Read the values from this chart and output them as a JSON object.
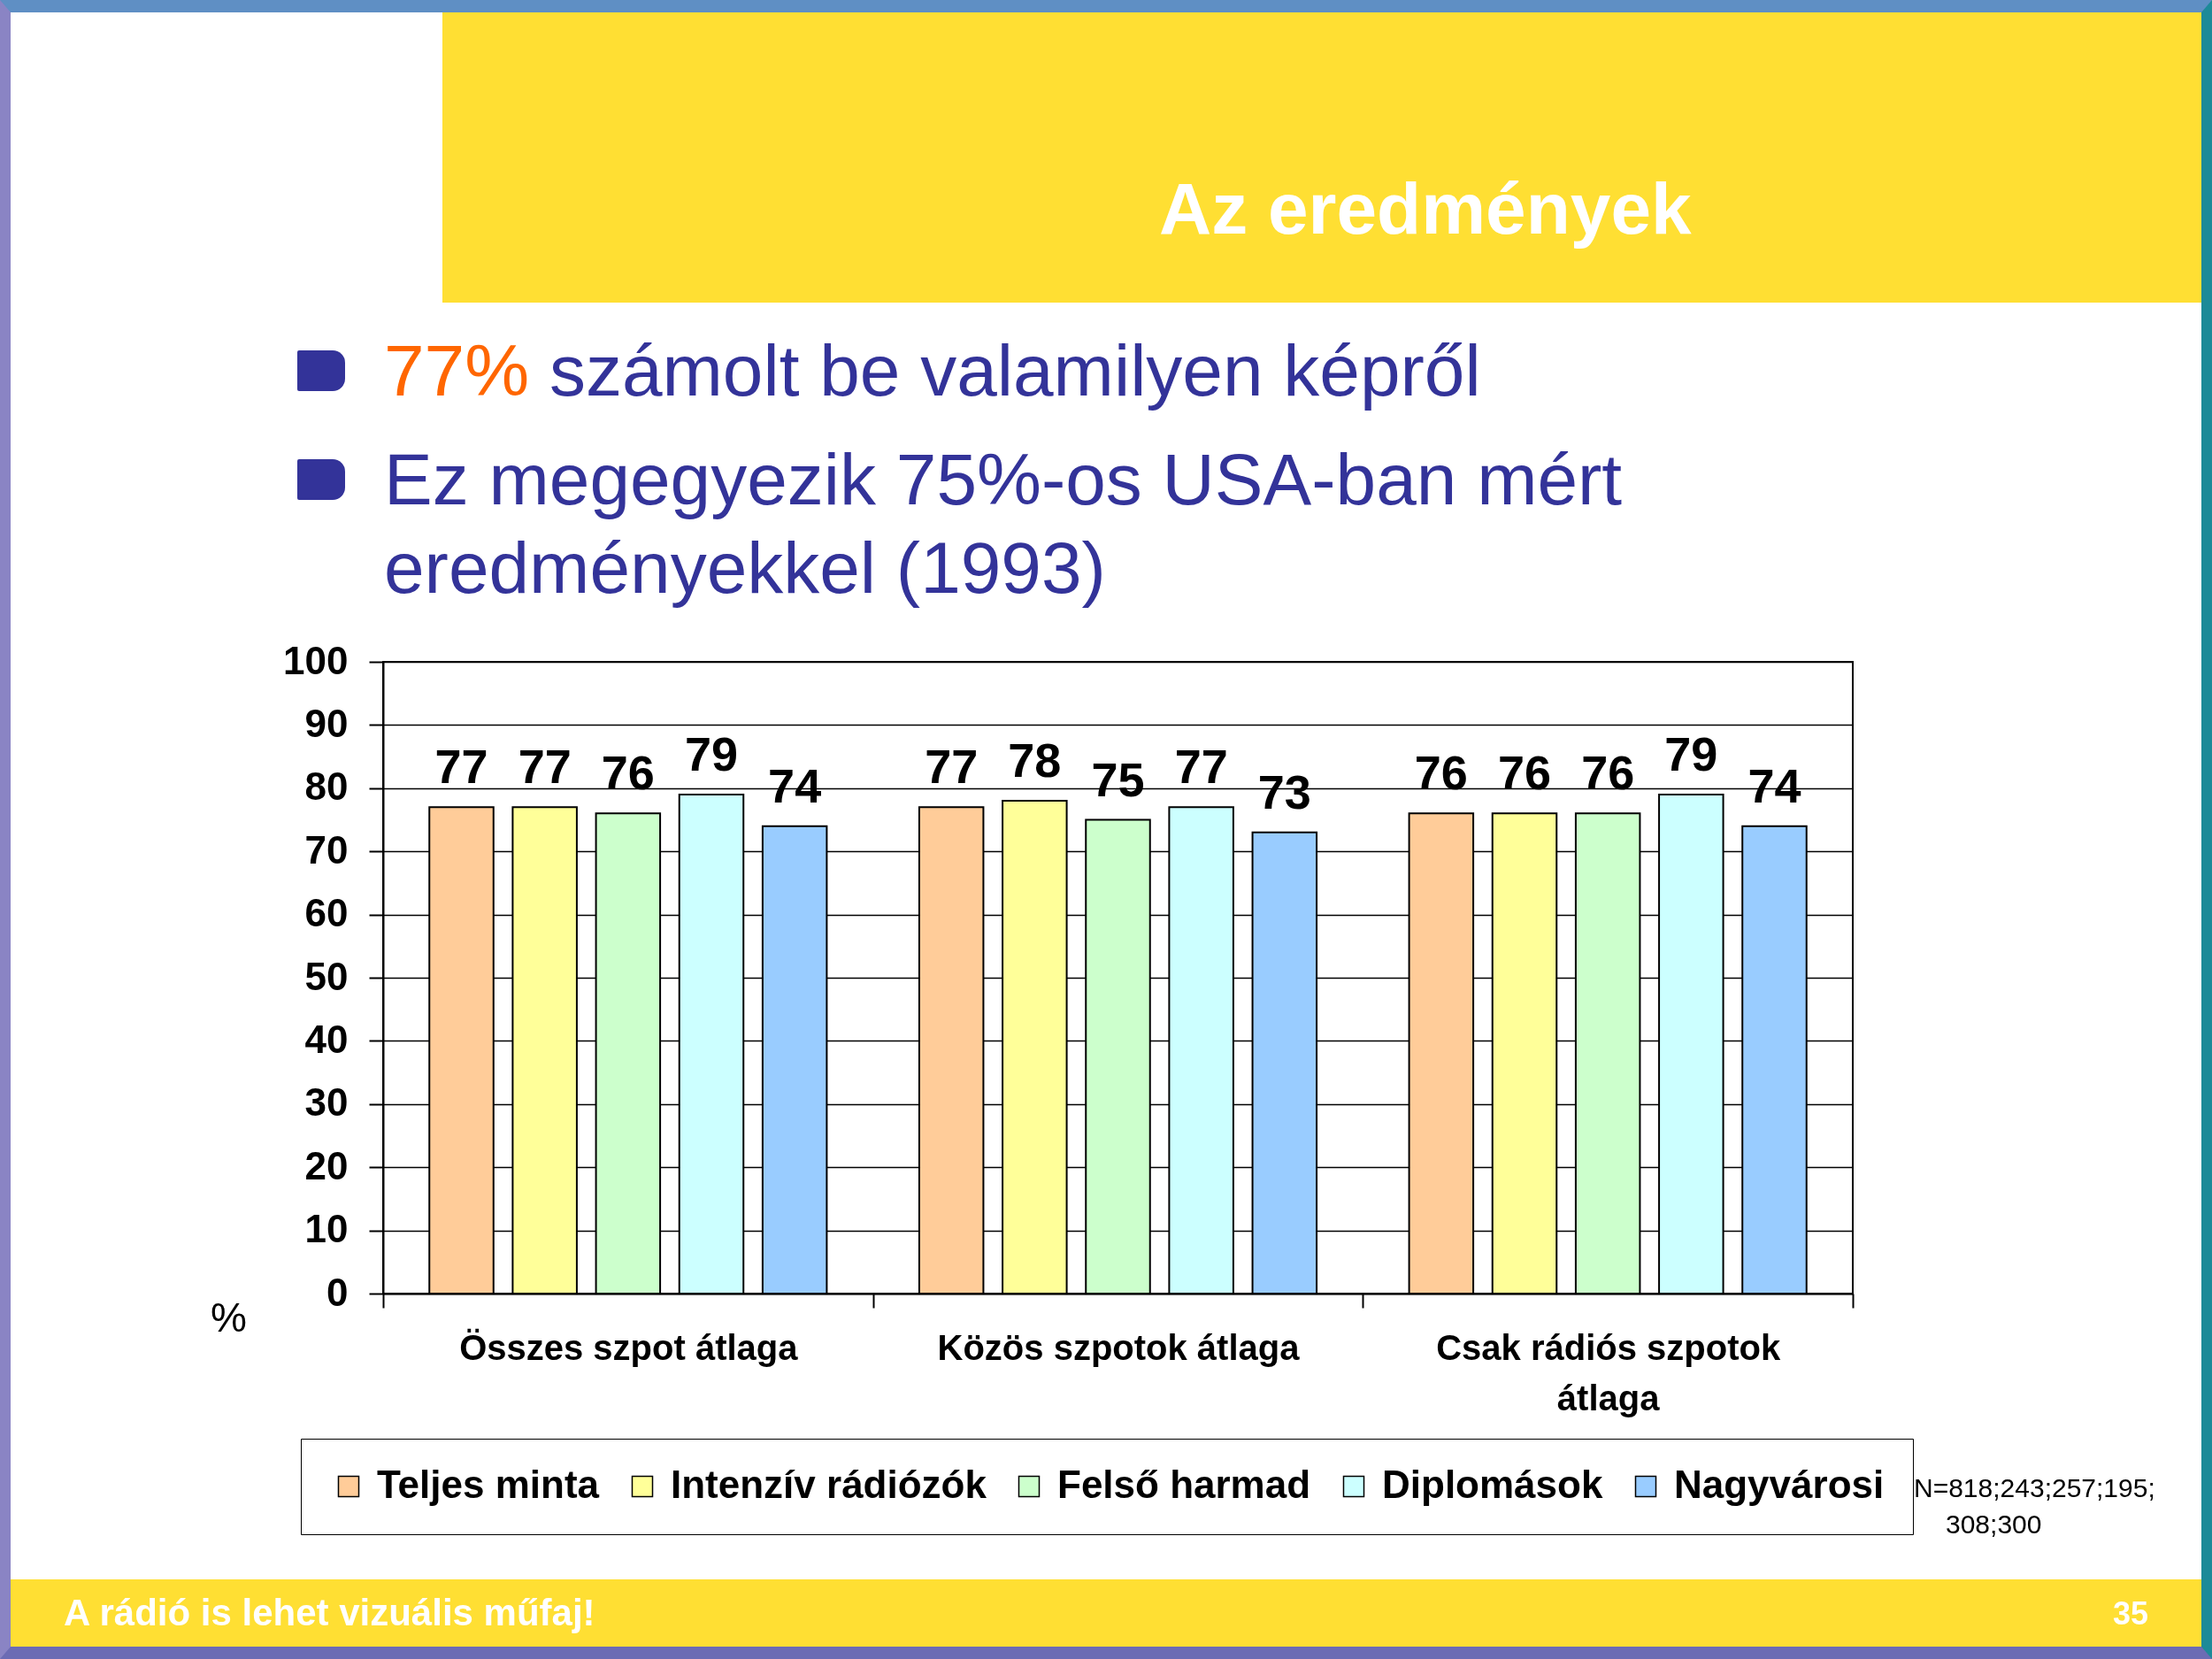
{
  "chart_data": {
    "type": "bar",
    "title": "Az eredmények",
    "ylabel": "%",
    "categories": [
      "Összes szpot átlaga",
      "Közös szpotok átlaga",
      "Csak rádiós szpotok átlaga"
    ],
    "series": [
      {
        "name": "Teljes minta",
        "color": "#ffcc99",
        "values": [
          77,
          77,
          76
        ]
      },
      {
        "name": "Intenzív rádiózók",
        "color": "#ffff99",
        "values": [
          77,
          78,
          76
        ]
      },
      {
        "name": "Felső harmad",
        "color": "#ccffcc",
        "values": [
          76,
          75,
          76
        ]
      },
      {
        "name": "Diplomások",
        "color": "#ccffff",
        "values": [
          79,
          77,
          79
        ]
      },
      {
        "name": "Nagyvárosi",
        "color": "#99ccff",
        "values": [
          74,
          73,
          74
        ]
      }
    ],
    "ylim": [
      0,
      100
    ],
    "yticks": [
      0,
      10,
      20,
      30,
      40,
      50,
      60,
      70,
      80,
      90,
      100
    ],
    "grid": "y",
    "legend": "bottom",
    "data_labels": true,
    "annotations": [
      "77% számolt be valamilyen képről",
      "Ez megegyezik 75%-os USA-ban mért eredményekkel (1993)",
      "N=818;243;257;195; 308;300",
      "A rádió is lehet vizuális műfaj!",
      "35"
    ]
  }
}
